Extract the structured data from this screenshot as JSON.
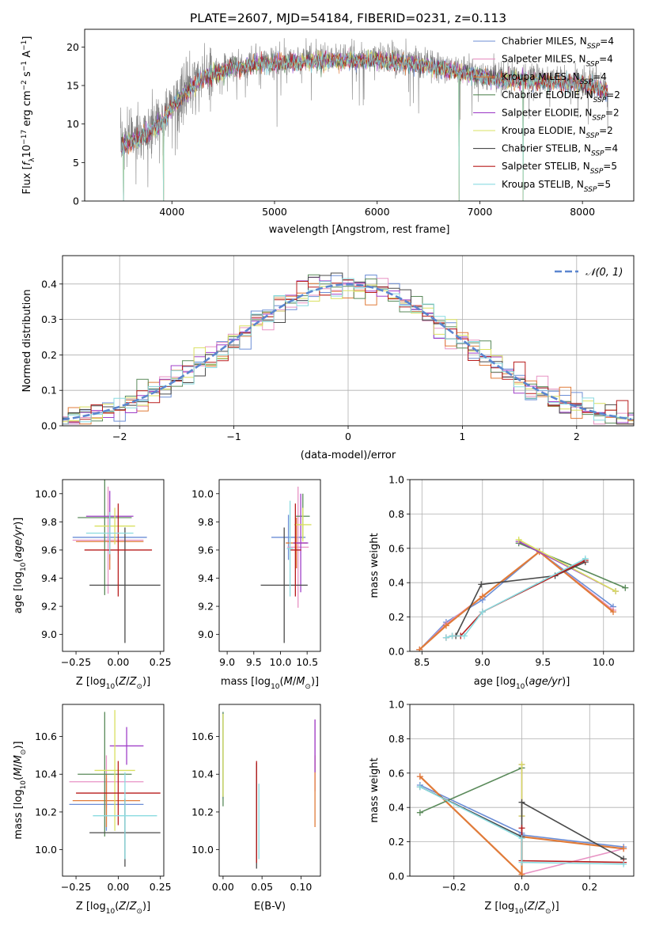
{
  "figure_title": "PLATE=2607, MJD=54184, FIBERID=0231, z=0.113",
  "series": [
    {
      "label": "Chabrier MILES, N$_{SSP}$=4",
      "label_main": "Chabrier MILES, N",
      "label_sub": "SSP",
      "label_tail": "=4",
      "color": "#6c8ed6"
    },
    {
      "label": "Salpeter MILES, N$_{SSP}$=4",
      "label_main": "Salpeter MILES, N",
      "label_sub": "SSP",
      "label_tail": "=4",
      "color": "#e893c4"
    },
    {
      "label": "Kroupa MILES, N$_{SSP}$=4",
      "label_main": "Kroupa MILES, N",
      "label_sub": "SSP",
      "label_tail": "=4",
      "color": "#e07b39"
    },
    {
      "label": "Chabrier ELODIE, N$_{SSP}$=2",
      "label_main": "Chabrier ELODIE, N",
      "label_sub": "SSP",
      "label_tail": "=2",
      "color": "#5a8a5a"
    },
    {
      "label": "Salpeter ELODIE, N$_{SSP}$=2",
      "label_main": "Salpeter ELODIE, N",
      "label_sub": "SSP",
      "label_tail": "=2",
      "color": "#a040c8"
    },
    {
      "label": "Kroupa ELODIE, N$_{SSP}$=2",
      "label_main": "Kroupa ELODIE, N",
      "label_sub": "SSP",
      "label_tail": "=2",
      "color": "#d9e060"
    },
    {
      "label": "Chabrier STELIB, N$_{SSP}$=4",
      "label_main": "Chabrier STELIB, N",
      "label_sub": "SSP",
      "label_tail": "=4",
      "color": "#4a4a4a"
    },
    {
      "label": "Salpeter STELIB, N$_{SSP}$=5",
      "label_main": "Salpeter STELIB, N",
      "label_sub": "SSP",
      "label_tail": "=5",
      "color": "#b81c1c"
    },
    {
      "label": "Kroupa STELIB, N$_{SSP}$=5",
      "label_main": "Kroupa STELIB, N",
      "label_sub": "SSP",
      "label_tail": "=5",
      "color": "#8adbe0"
    }
  ],
  "chart_data": [
    {
      "id": "spectrum",
      "type": "line",
      "xlabel": "wavelength [Angstrom, rest frame]",
      "ylabel": "Flux [f_λ 10^-17 erg cm^-2 s^-1 A^-1]",
      "xlim": [
        3150,
        8500
      ],
      "ylim": [
        0,
        22.3
      ],
      "xticks": [
        4000,
        5000,
        6000,
        7000,
        8000
      ],
      "yticks": [
        0,
        5,
        10,
        15,
        20
      ],
      "data_color": "#808080",
      "continuum": [
        [
          3500,
          7.5
        ],
        [
          3700,
          8.5
        ],
        [
          3900,
          10.5
        ],
        [
          4100,
          14.0
        ],
        [
          4300,
          16.2
        ],
        [
          4600,
          17.5
        ],
        [
          4900,
          18.2
        ],
        [
          5200,
          18.3
        ],
        [
          5600,
          18.5
        ],
        [
          6000,
          18.5
        ],
        [
          6400,
          18.0
        ],
        [
          6800,
          17.0
        ],
        [
          7200,
          16.0
        ],
        [
          7600,
          15.8
        ],
        [
          8000,
          15.5
        ],
        [
          8250,
          14.5
        ]
      ],
      "data_range": [
        3500,
        8250
      ],
      "drop_lines": [
        3530,
        3920,
        6800,
        7420
      ],
      "legend_position": "top-right"
    },
    {
      "id": "residuals",
      "type": "line",
      "xlabel": "(data-model)/error",
      "ylabel": "Normed distribution",
      "xlim": [
        -2.5,
        2.5
      ],
      "ylim": [
        0,
        0.48
      ],
      "xticks": [
        -2,
        -1,
        0,
        1,
        2
      ],
      "yticks": [
        0.0,
        0.1,
        0.2,
        0.3,
        0.4
      ],
      "bin_width": 0.1,
      "reference_curve": {
        "label": "N(0, 1)",
        "label_main": "𝒩(0, 1)",
        "mean": 0,
        "sigma": 1,
        "color": "#5b86cf"
      },
      "legend_position": "top-right",
      "grid": true
    },
    {
      "id": "age-vs-Z",
      "type": "scatter",
      "xlabel": "Z [log10(Z/Z⊙)]",
      "ylabel": "age [log10(age/yr)]",
      "xlim": [
        -0.33,
        0.27
      ],
      "ylim": [
        8.88,
        10.1
      ],
      "xticks": [
        -0.25,
        0.0,
        0.25
      ],
      "yticks": [
        9.0,
        9.2,
        9.4,
        9.6,
        9.8,
        10.0
      ],
      "points": [
        {
          "x": -0.05,
          "xerr": 0.22,
          "y": 9.69,
          "yerr": 0.16
        },
        {
          "x": -0.06,
          "xerr": 0.21,
          "y": 9.67,
          "yerr": 0.38
        },
        {
          "x": -0.05,
          "xerr": 0.2,
          "y": 9.66,
          "yerr": 0.2
        },
        {
          "x": -0.08,
          "xerr": 0.16,
          "y": 9.83,
          "yerr": 0.55
        },
        {
          "x": -0.05,
          "xerr": 0.14,
          "y": 9.84,
          "yerr": 0.18
        },
        {
          "x": -0.02,
          "xerr": 0.12,
          "y": 9.77,
          "yerr": 0.13
        },
        {
          "x": 0.04,
          "xerr": 0.21,
          "y": 9.35,
          "yerr": 0.41
        },
        {
          "x": 0.0,
          "xerr": 0.2,
          "y": 9.6,
          "yerr": 0.33
        },
        {
          "x": -0.05,
          "xerr": 0.14,
          "y": 9.72,
          "yerr": 0.15
        }
      ]
    },
    {
      "id": "age-vs-mass",
      "type": "scatter",
      "xlabel": "mass [log10(M/M⊙)]",
      "ylabel": "",
      "xlim": [
        8.85,
        10.75
      ],
      "ylim": [
        8.88,
        10.1
      ],
      "xticks": [
        9.0,
        9.5,
        10.0,
        10.5
      ],
      "yticks": [
        9.0,
        9.2,
        9.4,
        9.6,
        9.8,
        10.0
      ],
      "points": [
        {
          "x": 10.15,
          "xerr": 0.32,
          "y": 9.69,
          "yerr": 0.16
        },
        {
          "x": 10.33,
          "xerr": 0.2,
          "y": 9.62,
          "yerr": 0.43
        },
        {
          "x": 10.3,
          "xerr": 0.2,
          "y": 9.65,
          "yerr": 0.18
        },
        {
          "x": 10.42,
          "xerr": 0.13,
          "y": 9.84,
          "yerr": 0.16
        },
        {
          "x": 10.38,
          "xerr": 0.14,
          "y": 9.65,
          "yerr": 0.35
        },
        {
          "x": 10.42,
          "xerr": 0.16,
          "y": 9.78,
          "yerr": 0.12
        },
        {
          "x": 10.07,
          "xerr": 0.44,
          "y": 9.35,
          "yerr": 0.41
        },
        {
          "x": 10.28,
          "xerr": 0.11,
          "y": 9.6,
          "yerr": 0.33
        },
        {
          "x": 10.18,
          "xerr": 0.06,
          "y": 9.61,
          "yerr": 0.34
        }
      ]
    },
    {
      "id": "massweight-vs-age",
      "type": "line",
      "xlabel": "age [log10(age/yr)]",
      "ylabel": "mass weight",
      "xlim": [
        8.4,
        10.25
      ],
      "ylim": [
        0,
        1
      ],
      "xticks": [
        8.5,
        9.0,
        9.5,
        10.0
      ],
      "yticks": [
        0.0,
        0.2,
        0.4,
        0.6,
        0.8,
        1.0
      ],
      "grid": true,
      "lines": [
        {
          "x": [
            8.48,
            8.7,
            9.0,
            9.47,
            10.08
          ],
          "y": [
            0.01,
            0.17,
            0.3,
            0.58,
            0.26
          ]
        },
        {
          "x": [
            8.48,
            8.7,
            9.0,
            9.47,
            10.08
          ],
          "y": [
            0.01,
            0.16,
            0.32,
            0.58,
            0.24
          ]
        },
        {
          "x": [
            8.48,
            8.7,
            9.0,
            9.47,
            10.08
          ],
          "y": [
            0.01,
            0.15,
            0.32,
            0.58,
            0.23
          ]
        },
        {
          "x": [
            9.3,
            10.18
          ],
          "y": [
            0.63,
            0.37
          ]
        },
        {
          "x": [
            9.3,
            10.1
          ],
          "y": [
            0.64,
            0.35
          ]
        },
        {
          "x": [
            9.3,
            10.1
          ],
          "y": [
            0.65,
            0.35
          ]
        },
        {
          "x": [
            8.78,
            8.99,
            9.6,
            9.85
          ],
          "y": [
            0.09,
            0.39,
            0.44,
            0.52
          ]
        },
        {
          "x": [
            8.7,
            8.75,
            8.82,
            9.0,
            9.85
          ],
          "y": [
            0.08,
            0.09,
            0.09,
            0.23,
            0.53
          ]
        },
        {
          "x": [
            8.7,
            8.75,
            8.85,
            9.0,
            9.85
          ],
          "y": [
            0.08,
            0.09,
            0.09,
            0.23,
            0.54
          ]
        }
      ]
    },
    {
      "id": "mass-vs-Z",
      "type": "scatter",
      "xlabel": "Z [log10(Z/Z⊙)]",
      "ylabel": "mass [log10(M/M⊙)]",
      "xlim": [
        -0.33,
        0.27
      ],
      "ylim": [
        9.86,
        10.77
      ],
      "xticks": [
        -0.25,
        0.0,
        0.25
      ],
      "yticks": [
        10.0,
        10.2,
        10.4,
        10.6
      ],
      "points": [
        {
          "x": -0.07,
          "xerr": 0.22,
          "y": 10.24,
          "yerr": 0.14
        },
        {
          "x": -0.07,
          "xerr": 0.22,
          "y": 10.36,
          "yerr": 0.14
        },
        {
          "x": -0.07,
          "xerr": 0.2,
          "y": 10.26,
          "yerr": 0.14
        },
        {
          "x": -0.08,
          "xerr": 0.16,
          "y": 10.4,
          "yerr": 0.33
        },
        {
          "x": 0.05,
          "xerr": 0.1,
          "y": 10.55,
          "yerr": 0.1
        },
        {
          "x": -0.02,
          "xerr": 0.12,
          "y": 10.42,
          "yerr": 0.32
        },
        {
          "x": 0.04,
          "xerr": 0.21,
          "y": 10.09,
          "yerr": 0.18
        },
        {
          "x": 0.0,
          "xerr": 0.25,
          "y": 10.3,
          "yerr": 0.17
        },
        {
          "x": 0.04,
          "xerr": 0.19,
          "y": 10.18,
          "yerr": 0.23
        }
      ]
    },
    {
      "id": "mass-vs-EBV",
      "type": "scatter",
      "xlabel": "E(B-V)",
      "ylabel": "",
      "xlim": [
        -0.005,
        0.125
      ],
      "ylim": [
        9.86,
        10.77
      ],
      "xticks": [
        0.0,
        0.05,
        0.1
      ],
      "yticks": [
        10.0,
        10.2,
        10.4,
        10.6
      ],
      "points": [
        {
          "x": 0.0,
          "y": 10.5,
          "yerr": 0.23
        },
        {
          "x": 0.118,
          "y": 10.5,
          "yerr": 0.19
        },
        {
          "x": 0.118,
          "y": 10.31,
          "yerr": 0.19
        },
        {
          "x": 0.0,
          "y": 10.48,
          "yerr": 0.25
        },
        {
          "x": 0.118,
          "y": 10.55,
          "yerr": 0.14
        },
        {
          "x": 0.0,
          "y": 10.5,
          "yerr": 0.22
        },
        {
          "x": 0.043,
          "y": 10.18,
          "yerr": 0.28
        },
        {
          "x": 0.043,
          "y": 10.2,
          "yerr": 0.27
        },
        {
          "x": 0.046,
          "y": 10.15,
          "yerr": 0.2
        }
      ]
    },
    {
      "id": "massweight-vs-Z",
      "type": "line",
      "xlabel": "Z [log10(Z/Z⊙)]",
      "ylabel": "mass weight",
      "xlim": [
        -0.33,
        0.33
      ],
      "ylim": [
        0,
        1
      ],
      "xticks": [
        -0.2,
        0.0,
        0.2
      ],
      "yticks": [
        0.0,
        0.2,
        0.4,
        0.6,
        0.8,
        1.0
      ],
      "grid": true,
      "lines": [
        {
          "x": [
            -0.3,
            0.0,
            0.0,
            0.3
          ],
          "y": [
            0.53,
            0.25,
            0.24,
            0.17
          ]
        },
        {
          "x": [
            -0.3,
            0.0,
            0.0,
            0.3
          ],
          "y": [
            0.58,
            0.01,
            0.01,
            0.16
          ]
        },
        {
          "x": [
            -0.3,
            0.0,
            0.0,
            0.3
          ],
          "y": [
            0.58,
            0.01,
            0.23,
            0.16
          ]
        },
        {
          "x": [
            -0.3,
            0.0
          ],
          "y": [
            0.37,
            0.63
          ]
        },
        {
          "x": [
            0.0,
            0.0
          ],
          "y": [
            0.35,
            0.65
          ]
        },
        {
          "x": [
            0.0,
            0.0
          ],
          "y": [
            0.35,
            0.65
          ]
        },
        {
          "x": [
            -0.3,
            0.0,
            0.0,
            0.3
          ],
          "y": [
            0.52,
            0.23,
            0.43,
            0.1
          ]
        },
        {
          "x": [
            0.0,
            0.0,
            0.3
          ],
          "y": [
            0.28,
            0.09,
            0.08
          ]
        },
        {
          "x": [
            -0.3,
            0.0,
            0.0,
            0.3
          ],
          "y": [
            0.52,
            0.22,
            0.08,
            0.07
          ]
        }
      ]
    }
  ]
}
